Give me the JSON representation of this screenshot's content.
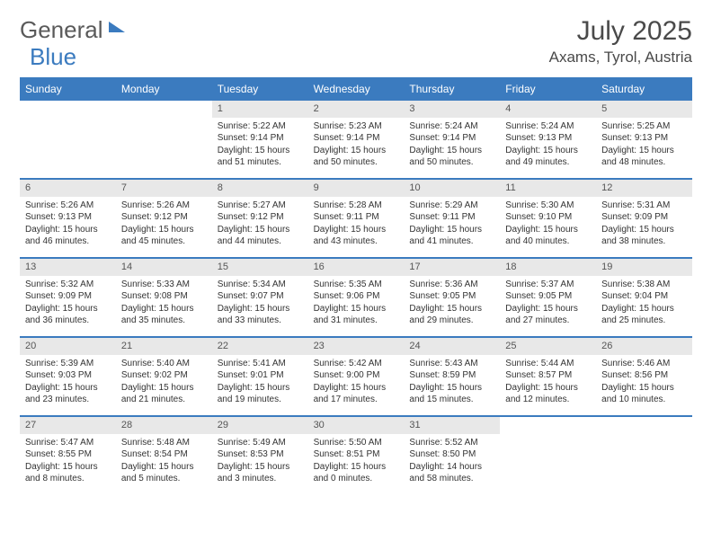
{
  "brand": {
    "part1": "General",
    "part2": "Blue"
  },
  "title": "July 2025",
  "location": "Axams, Tyrol, Austria",
  "colors": {
    "header_bg": "#3b7bbf",
    "daynum_bg": "#e8e8e8",
    "text": "#333333",
    "title_text": "#4a4a4a",
    "brand_gray": "#5a5a5a"
  },
  "daysOfWeek": [
    "Sunday",
    "Monday",
    "Tuesday",
    "Wednesday",
    "Thursday",
    "Friday",
    "Saturday"
  ],
  "weeks": [
    [
      null,
      null,
      {
        "n": "1",
        "sr": "5:22 AM",
        "ss": "9:14 PM",
        "dl": "15 hours and 51 minutes."
      },
      {
        "n": "2",
        "sr": "5:23 AM",
        "ss": "9:14 PM",
        "dl": "15 hours and 50 minutes."
      },
      {
        "n": "3",
        "sr": "5:24 AM",
        "ss": "9:14 PM",
        "dl": "15 hours and 50 minutes."
      },
      {
        "n": "4",
        "sr": "5:24 AM",
        "ss": "9:13 PM",
        "dl": "15 hours and 49 minutes."
      },
      {
        "n": "5",
        "sr": "5:25 AM",
        "ss": "9:13 PM",
        "dl": "15 hours and 48 minutes."
      }
    ],
    [
      {
        "n": "6",
        "sr": "5:26 AM",
        "ss": "9:13 PM",
        "dl": "15 hours and 46 minutes."
      },
      {
        "n": "7",
        "sr": "5:26 AM",
        "ss": "9:12 PM",
        "dl": "15 hours and 45 minutes."
      },
      {
        "n": "8",
        "sr": "5:27 AM",
        "ss": "9:12 PM",
        "dl": "15 hours and 44 minutes."
      },
      {
        "n": "9",
        "sr": "5:28 AM",
        "ss": "9:11 PM",
        "dl": "15 hours and 43 minutes."
      },
      {
        "n": "10",
        "sr": "5:29 AM",
        "ss": "9:11 PM",
        "dl": "15 hours and 41 minutes."
      },
      {
        "n": "11",
        "sr": "5:30 AM",
        "ss": "9:10 PM",
        "dl": "15 hours and 40 minutes."
      },
      {
        "n": "12",
        "sr": "5:31 AM",
        "ss": "9:09 PM",
        "dl": "15 hours and 38 minutes."
      }
    ],
    [
      {
        "n": "13",
        "sr": "5:32 AM",
        "ss": "9:09 PM",
        "dl": "15 hours and 36 minutes."
      },
      {
        "n": "14",
        "sr": "5:33 AM",
        "ss": "9:08 PM",
        "dl": "15 hours and 35 minutes."
      },
      {
        "n": "15",
        "sr": "5:34 AM",
        "ss": "9:07 PM",
        "dl": "15 hours and 33 minutes."
      },
      {
        "n": "16",
        "sr": "5:35 AM",
        "ss": "9:06 PM",
        "dl": "15 hours and 31 minutes."
      },
      {
        "n": "17",
        "sr": "5:36 AM",
        "ss": "9:05 PM",
        "dl": "15 hours and 29 minutes."
      },
      {
        "n": "18",
        "sr": "5:37 AM",
        "ss": "9:05 PM",
        "dl": "15 hours and 27 minutes."
      },
      {
        "n": "19",
        "sr": "5:38 AM",
        "ss": "9:04 PM",
        "dl": "15 hours and 25 minutes."
      }
    ],
    [
      {
        "n": "20",
        "sr": "5:39 AM",
        "ss": "9:03 PM",
        "dl": "15 hours and 23 minutes."
      },
      {
        "n": "21",
        "sr": "5:40 AM",
        "ss": "9:02 PM",
        "dl": "15 hours and 21 minutes."
      },
      {
        "n": "22",
        "sr": "5:41 AM",
        "ss": "9:01 PM",
        "dl": "15 hours and 19 minutes."
      },
      {
        "n": "23",
        "sr": "5:42 AM",
        "ss": "9:00 PM",
        "dl": "15 hours and 17 minutes."
      },
      {
        "n": "24",
        "sr": "5:43 AM",
        "ss": "8:59 PM",
        "dl": "15 hours and 15 minutes."
      },
      {
        "n": "25",
        "sr": "5:44 AM",
        "ss": "8:57 PM",
        "dl": "15 hours and 12 minutes."
      },
      {
        "n": "26",
        "sr": "5:46 AM",
        "ss": "8:56 PM",
        "dl": "15 hours and 10 minutes."
      }
    ],
    [
      {
        "n": "27",
        "sr": "5:47 AM",
        "ss": "8:55 PM",
        "dl": "15 hours and 8 minutes."
      },
      {
        "n": "28",
        "sr": "5:48 AM",
        "ss": "8:54 PM",
        "dl": "15 hours and 5 minutes."
      },
      {
        "n": "29",
        "sr": "5:49 AM",
        "ss": "8:53 PM",
        "dl": "15 hours and 3 minutes."
      },
      {
        "n": "30",
        "sr": "5:50 AM",
        "ss": "8:51 PM",
        "dl": "15 hours and 0 minutes."
      },
      {
        "n": "31",
        "sr": "5:52 AM",
        "ss": "8:50 PM",
        "dl": "14 hours and 58 minutes."
      },
      null,
      null
    ]
  ],
  "labels": {
    "sunrise": "Sunrise:",
    "sunset": "Sunset:",
    "daylight": "Daylight:"
  }
}
